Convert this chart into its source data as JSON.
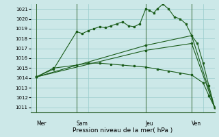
{
  "background_color": "#cce8e8",
  "grid_color": "#99cccc",
  "line_color": "#1a5c1a",
  "title": "Pression niveau de la mer( hPa )",
  "ylim": [
    1010.5,
    1021.5
  ],
  "yticks": [
    1011,
    1012,
    1013,
    1014,
    1015,
    1016,
    1017,
    1018,
    1019,
    1020,
    1021
  ],
  "day_labels": [
    "Mer",
    "Sam",
    "Jeu",
    "Ven"
  ],
  "day_positions": [
    0.5,
    4,
    10,
    14
  ],
  "vline_positions": [
    0.5,
    4,
    10,
    14
  ],
  "xlim": [
    0,
    16
  ],
  "series": [
    {
      "x": [
        0.5,
        2,
        4,
        4.5,
        5,
        5.5,
        6,
        6.5,
        7,
        7.5,
        8,
        8.5,
        9,
        9.5,
        10,
        10.3,
        10.7,
        11,
        11.5,
        12,
        12.5,
        13,
        13.5,
        14,
        14.5,
        15,
        15.5,
        16
      ],
      "y": [
        1014.1,
        1014.9,
        1018.7,
        1018.5,
        1018.8,
        1019.0,
        1019.2,
        1019.1,
        1019.3,
        1019.5,
        1019.7,
        1019.3,
        1019.2,
        1019.5,
        1021.0,
        1020.9,
        1020.6,
        1021.0,
        1021.5,
        1021.0,
        1020.2,
        1020.0,
        1019.5,
        1018.3,
        1017.5,
        1015.5,
        1013.2,
        1011.0
      ]
    },
    {
      "x": [
        0.5,
        2,
        4,
        5,
        6,
        7,
        8,
        9,
        10,
        11,
        12,
        13,
        14,
        15,
        15.5,
        16
      ],
      "y": [
        1014.1,
        1015.0,
        1015.3,
        1015.5,
        1015.5,
        1015.4,
        1015.3,
        1015.2,
        1015.1,
        1014.9,
        1014.7,
        1014.5,
        1014.3,
        1013.5,
        1012.2,
        1011.0
      ]
    },
    {
      "x": [
        0.5,
        10,
        14,
        16
      ],
      "y": [
        1014.1,
        1017.3,
        1018.3,
        1011.0
      ]
    },
    {
      "x": [
        0.5,
        10,
        14,
        16
      ],
      "y": [
        1014.1,
        1016.8,
        1017.5,
        1011.0
      ]
    }
  ]
}
